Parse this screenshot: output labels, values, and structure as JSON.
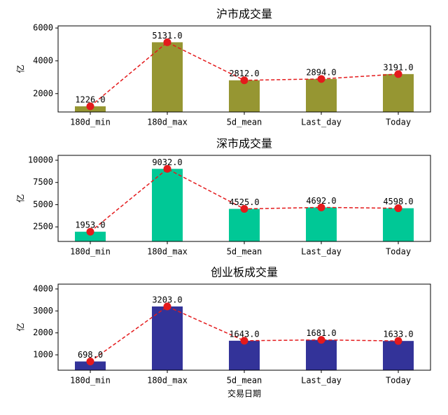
{
  "chart_data": [
    {
      "type": "bar",
      "title": "沪市成交量",
      "ylabel": "亿",
      "categories": [
        "180d_min",
        "180d_max",
        "5d_mean",
        "Last_day",
        "Today"
      ],
      "values": [
        1226,
        5131,
        2812,
        2894,
        3191
      ],
      "value_labels": [
        "1226.0",
        "5131.0",
        "2812.0",
        "2894.0",
        "3191.0"
      ],
      "color": "#969632",
      "line_color": "#e41a1c",
      "ylim": [
        880,
        6130
      ],
      "yticks": [
        2000,
        4000,
        6000
      ]
    },
    {
      "type": "bar",
      "title": "深市成交量",
      "ylabel": "亿",
      "categories": [
        "180d_min",
        "180d_max",
        "5d_mean",
        "Last_day",
        "Today"
      ],
      "values": [
        1953,
        9032,
        4525,
        4692,
        4598
      ],
      "value_labels": [
        "1953.0",
        "9032.0",
        "4525.0",
        "4692.0",
        "4598.0"
      ],
      "color": "#00c896",
      "line_color": "#e41a1c",
      "ylim": [
        860,
        10550
      ],
      "yticks": [
        2500,
        5000,
        7500,
        10000
      ]
    },
    {
      "type": "bar",
      "title": "创业板成交量",
      "ylabel": "亿",
      "xlabel": "交易日期",
      "categories": [
        "180d_min",
        "180d_max",
        "5d_mean",
        "Last_day",
        "Today"
      ],
      "values": [
        698,
        3203,
        1643,
        1681,
        1633
      ],
      "value_labels": [
        "698.0",
        "3203.0",
        "1643.0",
        "1681.0",
        "1633.0"
      ],
      "color": "#333399",
      "line_color": "#e41a1c",
      "ylim": [
        300,
        4220
      ],
      "yticks": [
        1000,
        2000,
        3000,
        4000
      ]
    }
  ]
}
